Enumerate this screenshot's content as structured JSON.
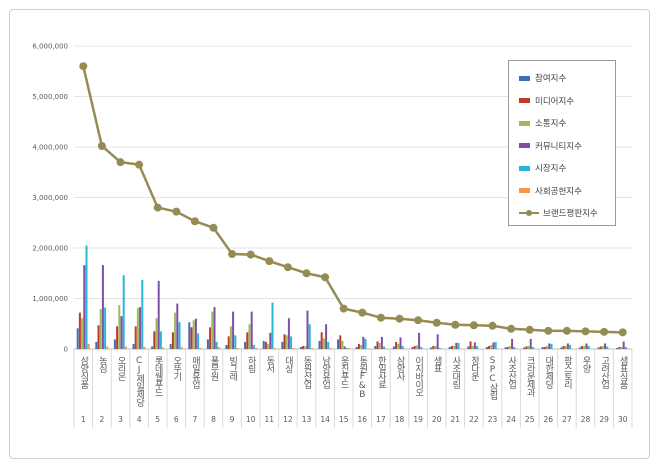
{
  "chart_data": {
    "type": "bar",
    "title": "",
    "xlabel": "",
    "ylabel": "",
    "ylim": [
      0,
      6000000
    ],
    "yticks": [
      "0",
      "1,000,000",
      "2,000,000",
      "3,000,000",
      "4,000,000",
      "5,000,000",
      "6,000,000"
    ],
    "legend_position": "top-right",
    "categories": [
      "삼양식품",
      "농심",
      "오리온",
      "CJ제일제당",
      "롯데웰푸드",
      "오뚜기",
      "매일유업",
      "풀무원",
      "빙그레",
      "하림",
      "동서",
      "대상",
      "동원산업",
      "남양유업",
      "웅진푸드",
      "동원F&B",
      "한일사료",
      "삼양사",
      "이지바이오",
      "샘표",
      "사조대림",
      "정다운",
      "SPC삼립",
      "사조산업",
      "크라운제과",
      "대한제당",
      "팜스토리",
      "우양",
      "고려산업",
      "샘표식품"
    ],
    "ranks": [
      "1",
      "2",
      "3",
      "4",
      "5",
      "6",
      "7",
      "8",
      "9",
      "10",
      "11",
      "12",
      "13",
      "14",
      "15",
      "16",
      "17",
      "18",
      "19",
      "20",
      "21",
      "22",
      "23",
      "24",
      "25",
      "26",
      "27",
      "28",
      "29",
      "30"
    ],
    "series": [
      {
        "name": "참여지수",
        "color": "#3F6FB8",
        "type": "bar",
        "values": [
          410000,
          140000,
          190000,
          100000,
          50000,
          100000,
          530000,
          190000,
          80000,
          140000,
          160000,
          140000,
          40000,
          160000,
          190000,
          40000,
          60000,
          50000,
          40000,
          30000,
          40000,
          50000,
          40000,
          30000,
          30000,
          40000,
          30000,
          30000,
          30000,
          20000
        ]
      },
      {
        "name": "미디어지수",
        "color": "#C0392B",
        "type": "bar",
        "values": [
          720000,
          470000,
          450000,
          450000,
          350000,
          330000,
          430000,
          430000,
          250000,
          330000,
          140000,
          290000,
          60000,
          330000,
          270000,
          100000,
          150000,
          140000,
          60000,
          60000,
          60000,
          150000,
          60000,
          40000,
          50000,
          40000,
          60000,
          60000,
          50000,
          40000
        ]
      },
      {
        "name": "소통지수",
        "color": "#9BBB59",
        "type": "bar",
        "values": [
          610000,
          790000,
          870000,
          810000,
          610000,
          720000,
          570000,
          740000,
          450000,
          490000,
          100000,
          270000,
          60000,
          210000,
          160000,
          80000,
          120000,
          100000,
          70000,
          60000,
          60000,
          60000,
          80000,
          60000,
          60000,
          60000,
          60000,
          60000,
          60000,
          40000
        ]
      },
      {
        "name": "커뮤니티지수",
        "color": "#7F4FA8",
        "type": "bar",
        "values": [
          1660000,
          1660000,
          650000,
          830000,
          1350000,
          900000,
          600000,
          830000,
          740000,
          740000,
          320000,
          610000,
          760000,
          490000,
          50000,
          240000,
          240000,
          230000,
          320000,
          290000,
          120000,
          130000,
          130000,
          200000,
          200000,
          110000,
          110000,
          110000,
          110000,
          150000
        ]
      },
      {
        "name": "시장지수",
        "color": "#2BB5D8",
        "type": "bar",
        "values": [
          2050000,
          820000,
          1460000,
          1370000,
          350000,
          530000,
          310000,
          140000,
          270000,
          80000,
          920000,
          250000,
          490000,
          140000,
          20000,
          200000,
          50000,
          60000,
          40000,
          20000,
          120000,
          60000,
          140000,
          40000,
          40000,
          100000,
          80000,
          60000,
          50000,
          40000
        ]
      },
      {
        "name": "사회공헌지수",
        "color": "#F79646",
        "type": "bar",
        "values": [
          100000,
          50000,
          50000,
          40000,
          30000,
          40000,
          20000,
          40000,
          20000,
          20000,
          20000,
          20000,
          20000,
          20000,
          20000,
          10000,
          10000,
          10000,
          10000,
          10000,
          10000,
          10000,
          10000,
          10000,
          10000,
          10000,
          10000,
          10000,
          10000,
          10000
        ]
      },
      {
        "name": "브랜드평판지수",
        "color": "#968B54",
        "type": "line",
        "values": [
          5600000,
          4020000,
          3700000,
          3650000,
          2800000,
          2720000,
          2530000,
          2400000,
          1880000,
          1870000,
          1740000,
          1620000,
          1500000,
          1420000,
          800000,
          720000,
          620000,
          600000,
          570000,
          520000,
          480000,
          470000,
          460000,
          400000,
          380000,
          360000,
          360000,
          350000,
          340000,
          330000
        ]
      }
    ]
  }
}
